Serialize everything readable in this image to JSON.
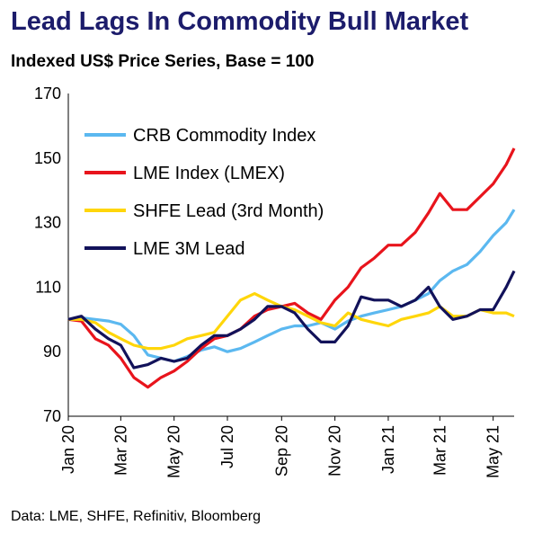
{
  "title": "Lead Lags In Commodity Bull Market",
  "subtitle": "Indexed US$ Price Series, Base = 100",
  "source": "Data: LME, SHFE, Refinitiv, Bloomberg",
  "chart_data": {
    "type": "line",
    "title": "Lead Lags In Commodity Bull Market",
    "subtitle": "Indexed US$ Price Series, Base = 100",
    "xlabel": "",
    "ylabel": "",
    "ylim": [
      70,
      170
    ],
    "yticks": [
      70,
      90,
      110,
      130,
      150,
      170
    ],
    "x_ticks": [
      "Jan 20",
      "Mar 20",
      "May 20",
      "Jul 20",
      "Sep 20",
      "Nov 20",
      "Jan 21",
      "Mar 21",
      "May 21"
    ],
    "grid": false,
    "legend_position": "top-left",
    "x": [
      "2020-01-01",
      "2020-01-16",
      "2020-02-01",
      "2020-02-16",
      "2020-03-01",
      "2020-03-16",
      "2020-04-01",
      "2020-04-16",
      "2020-05-01",
      "2020-05-16",
      "2020-06-01",
      "2020-06-16",
      "2020-07-01",
      "2020-07-16",
      "2020-08-01",
      "2020-08-16",
      "2020-09-01",
      "2020-09-16",
      "2020-10-01",
      "2020-10-16",
      "2020-11-01",
      "2020-11-16",
      "2020-12-01",
      "2020-12-16",
      "2021-01-01",
      "2021-01-16",
      "2021-02-01",
      "2021-02-16",
      "2021-03-01",
      "2021-03-16",
      "2021-04-01",
      "2021-04-16",
      "2021-05-01",
      "2021-05-16",
      "2021-05-25"
    ],
    "series": [
      {
        "name": "CRB Commodity Index",
        "color": "#5bb8f0",
        "values": [
          100,
          100.5,
          100,
          99.5,
          98.5,
          95,
          89,
          88,
          87,
          88.5,
          90.5,
          91.5,
          90,
          91,
          93,
          95,
          97,
          98,
          98,
          99,
          97,
          99.5,
          101,
          102,
          103,
          104,
          106,
          108,
          112,
          115,
          117,
          121,
          126,
          130,
          134
        ]
      },
      {
        "name": "LME Index (LMEX)",
        "color": "#e8141c",
        "values": [
          100,
          99.5,
          94,
          92,
          88,
          82,
          79,
          82,
          84,
          87,
          91,
          94,
          95,
          97,
          101,
          103,
          104,
          105,
          102,
          100,
          106,
          110,
          116,
          119,
          123,
          123,
          127,
          133,
          139,
          134,
          134,
          138,
          142,
          148,
          153
        ]
      },
      {
        "name": "SHFE Lead (3rd Month)",
        "color": "#ffd60a",
        "values": [
          100,
          100,
          99,
          96,
          94,
          92,
          91,
          91,
          92,
          94,
          95,
          96,
          101,
          106,
          108,
          106,
          104,
          103,
          101,
          99,
          98,
          102,
          100,
          99,
          98,
          100,
          101,
          102,
          104,
          101,
          101,
          103,
          102,
          102,
          101
        ]
      },
      {
        "name": "LME 3M Lead",
        "color": "#12125a",
        "values": [
          100,
          101,
          97,
          94,
          92,
          85,
          86,
          88,
          87,
          88,
          92,
          95,
          95,
          97,
          100,
          104,
          104,
          102,
          97,
          93,
          93,
          98,
          107,
          106,
          106,
          104,
          106,
          110,
          104,
          100,
          101,
          103,
          103,
          110,
          115
        ]
      }
    ]
  }
}
